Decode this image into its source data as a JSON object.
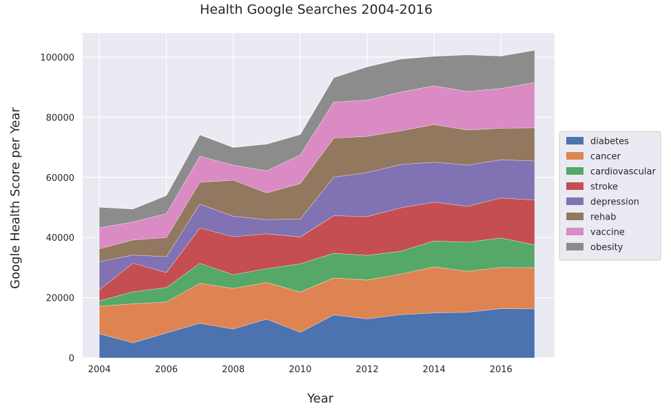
{
  "chart_data": {
    "type": "area",
    "stacked": true,
    "title": "Health Google Searches 2004-2016",
    "xlabel": "Year",
    "ylabel": "Google Health Score per Year",
    "xlim": [
      2003.5,
      2017.6
    ],
    "ylim": [
      0,
      108000
    ],
    "x_ticks": [
      2004,
      2006,
      2008,
      2010,
      2012,
      2014,
      2016
    ],
    "y_ticks": [
      0,
      20000,
      40000,
      60000,
      80000,
      100000
    ],
    "grid": true,
    "legend_position": "right",
    "x": [
      2004,
      2005,
      2006,
      2007,
      2008,
      2009,
      2010,
      2011,
      2012,
      2013,
      2014,
      2015,
      2016,
      2017
    ],
    "series": [
      {
        "name": "diabetes",
        "color": "#4c72b0",
        "values": [
          8000,
          5000,
          8300,
          11500,
          9600,
          12900,
          8500,
          14300,
          13000,
          14400,
          15000,
          15200,
          16400,
          16300
        ]
      },
      {
        "name": "cancer",
        "color": "#dd8452",
        "values": [
          9200,
          13000,
          10300,
          13300,
          13500,
          12200,
          13400,
          12300,
          12900,
          13500,
          15300,
          13600,
          13700,
          13700
        ]
      },
      {
        "name": "cardiovascular",
        "color": "#55a868",
        "values": [
          1800,
          4000,
          4800,
          6700,
          4600,
          4600,
          9400,
          8200,
          8200,
          7600,
          8600,
          9700,
          9800,
          7600
        ]
      },
      {
        "name": "stroke",
        "color": "#c44e52",
        "values": [
          3700,
          9500,
          5000,
          11700,
          12600,
          11600,
          8900,
          12500,
          12900,
          14400,
          12900,
          11900,
          13300,
          14900
        ]
      },
      {
        "name": "depression",
        "color": "#8172b3",
        "values": [
          9300,
          2700,
          5300,
          8000,
          6800,
          4700,
          6000,
          12800,
          14600,
          14400,
          13300,
          13700,
          12700,
          13000
        ]
      },
      {
        "name": "rehab",
        "color": "#937860",
        "values": [
          4300,
          5000,
          6300,
          7200,
          12000,
          8900,
          11800,
          13000,
          12100,
          11200,
          12500,
          11700,
          10500,
          11000
        ]
      },
      {
        "name": "vaccine",
        "color": "#da8bc3",
        "values": [
          7000,
          6000,
          8000,
          8700,
          5000,
          7300,
          9500,
          12000,
          12000,
          12900,
          12900,
          12800,
          13200,
          15100
        ]
      },
      {
        "name": "obesity",
        "color": "#8c8c8c",
        "values": [
          6800,
          4300,
          6000,
          7100,
          5900,
          8900,
          6800,
          8100,
          11100,
          11000,
          9800,
          12200,
          10800,
          10700
        ]
      }
    ]
  }
}
